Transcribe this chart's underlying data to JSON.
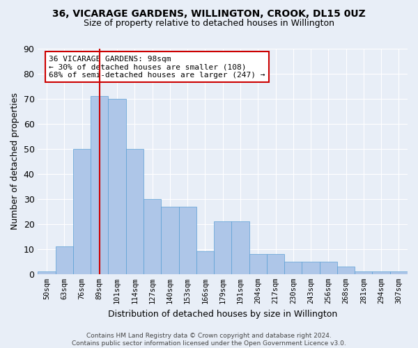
{
  "title": "36, VICARAGE GARDENS, WILLINGTON, CROOK, DL15 0UZ",
  "subtitle": "Size of property relative to detached houses in Willington",
  "xlabel": "Distribution of detached houses by size in Willington",
  "ylabel": "Number of detached properties",
  "bar_values": [
    1,
    11,
    50,
    71,
    70,
    50,
    30,
    27,
    27,
    9,
    21,
    21,
    8,
    8,
    5,
    5,
    5,
    3,
    1,
    1,
    1
  ],
  "bin_labels": [
    "50sqm",
    "63sqm",
    "76sqm",
    "89sqm",
    "101sqm",
    "114sqm",
    "127sqm",
    "140sqm",
    "153sqm",
    "166sqm",
    "179sqm",
    "191sqm",
    "204sqm",
    "217sqm",
    "230sqm",
    "243sqm",
    "256sqm",
    "268sqm",
    "281sqm",
    "294sqm",
    "307sqm"
  ],
  "bar_color": "#aec6e8",
  "bar_edge_color": "#5a9fd4",
  "background_color": "#e8eef7",
  "grid_color": "#ffffff",
  "vline_x": 3.0,
  "annotation_line1": "36 VICARAGE GARDENS: 98sqm",
  "annotation_line2": "← 30% of detached houses are smaller (108)",
  "annotation_line3": "68% of semi-detached houses are larger (247) →",
  "annotation_box_color": "#ffffff",
  "annotation_box_edge": "#cc0000",
  "vline_color": "#cc0000",
  "footnote": "Contains HM Land Registry data © Crown copyright and database right 2024.\nContains public sector information licensed under the Open Government Licence v3.0.",
  "ylim": [
    0,
    90
  ],
  "yticks": [
    0,
    10,
    20,
    30,
    40,
    50,
    60,
    70,
    80,
    90
  ]
}
